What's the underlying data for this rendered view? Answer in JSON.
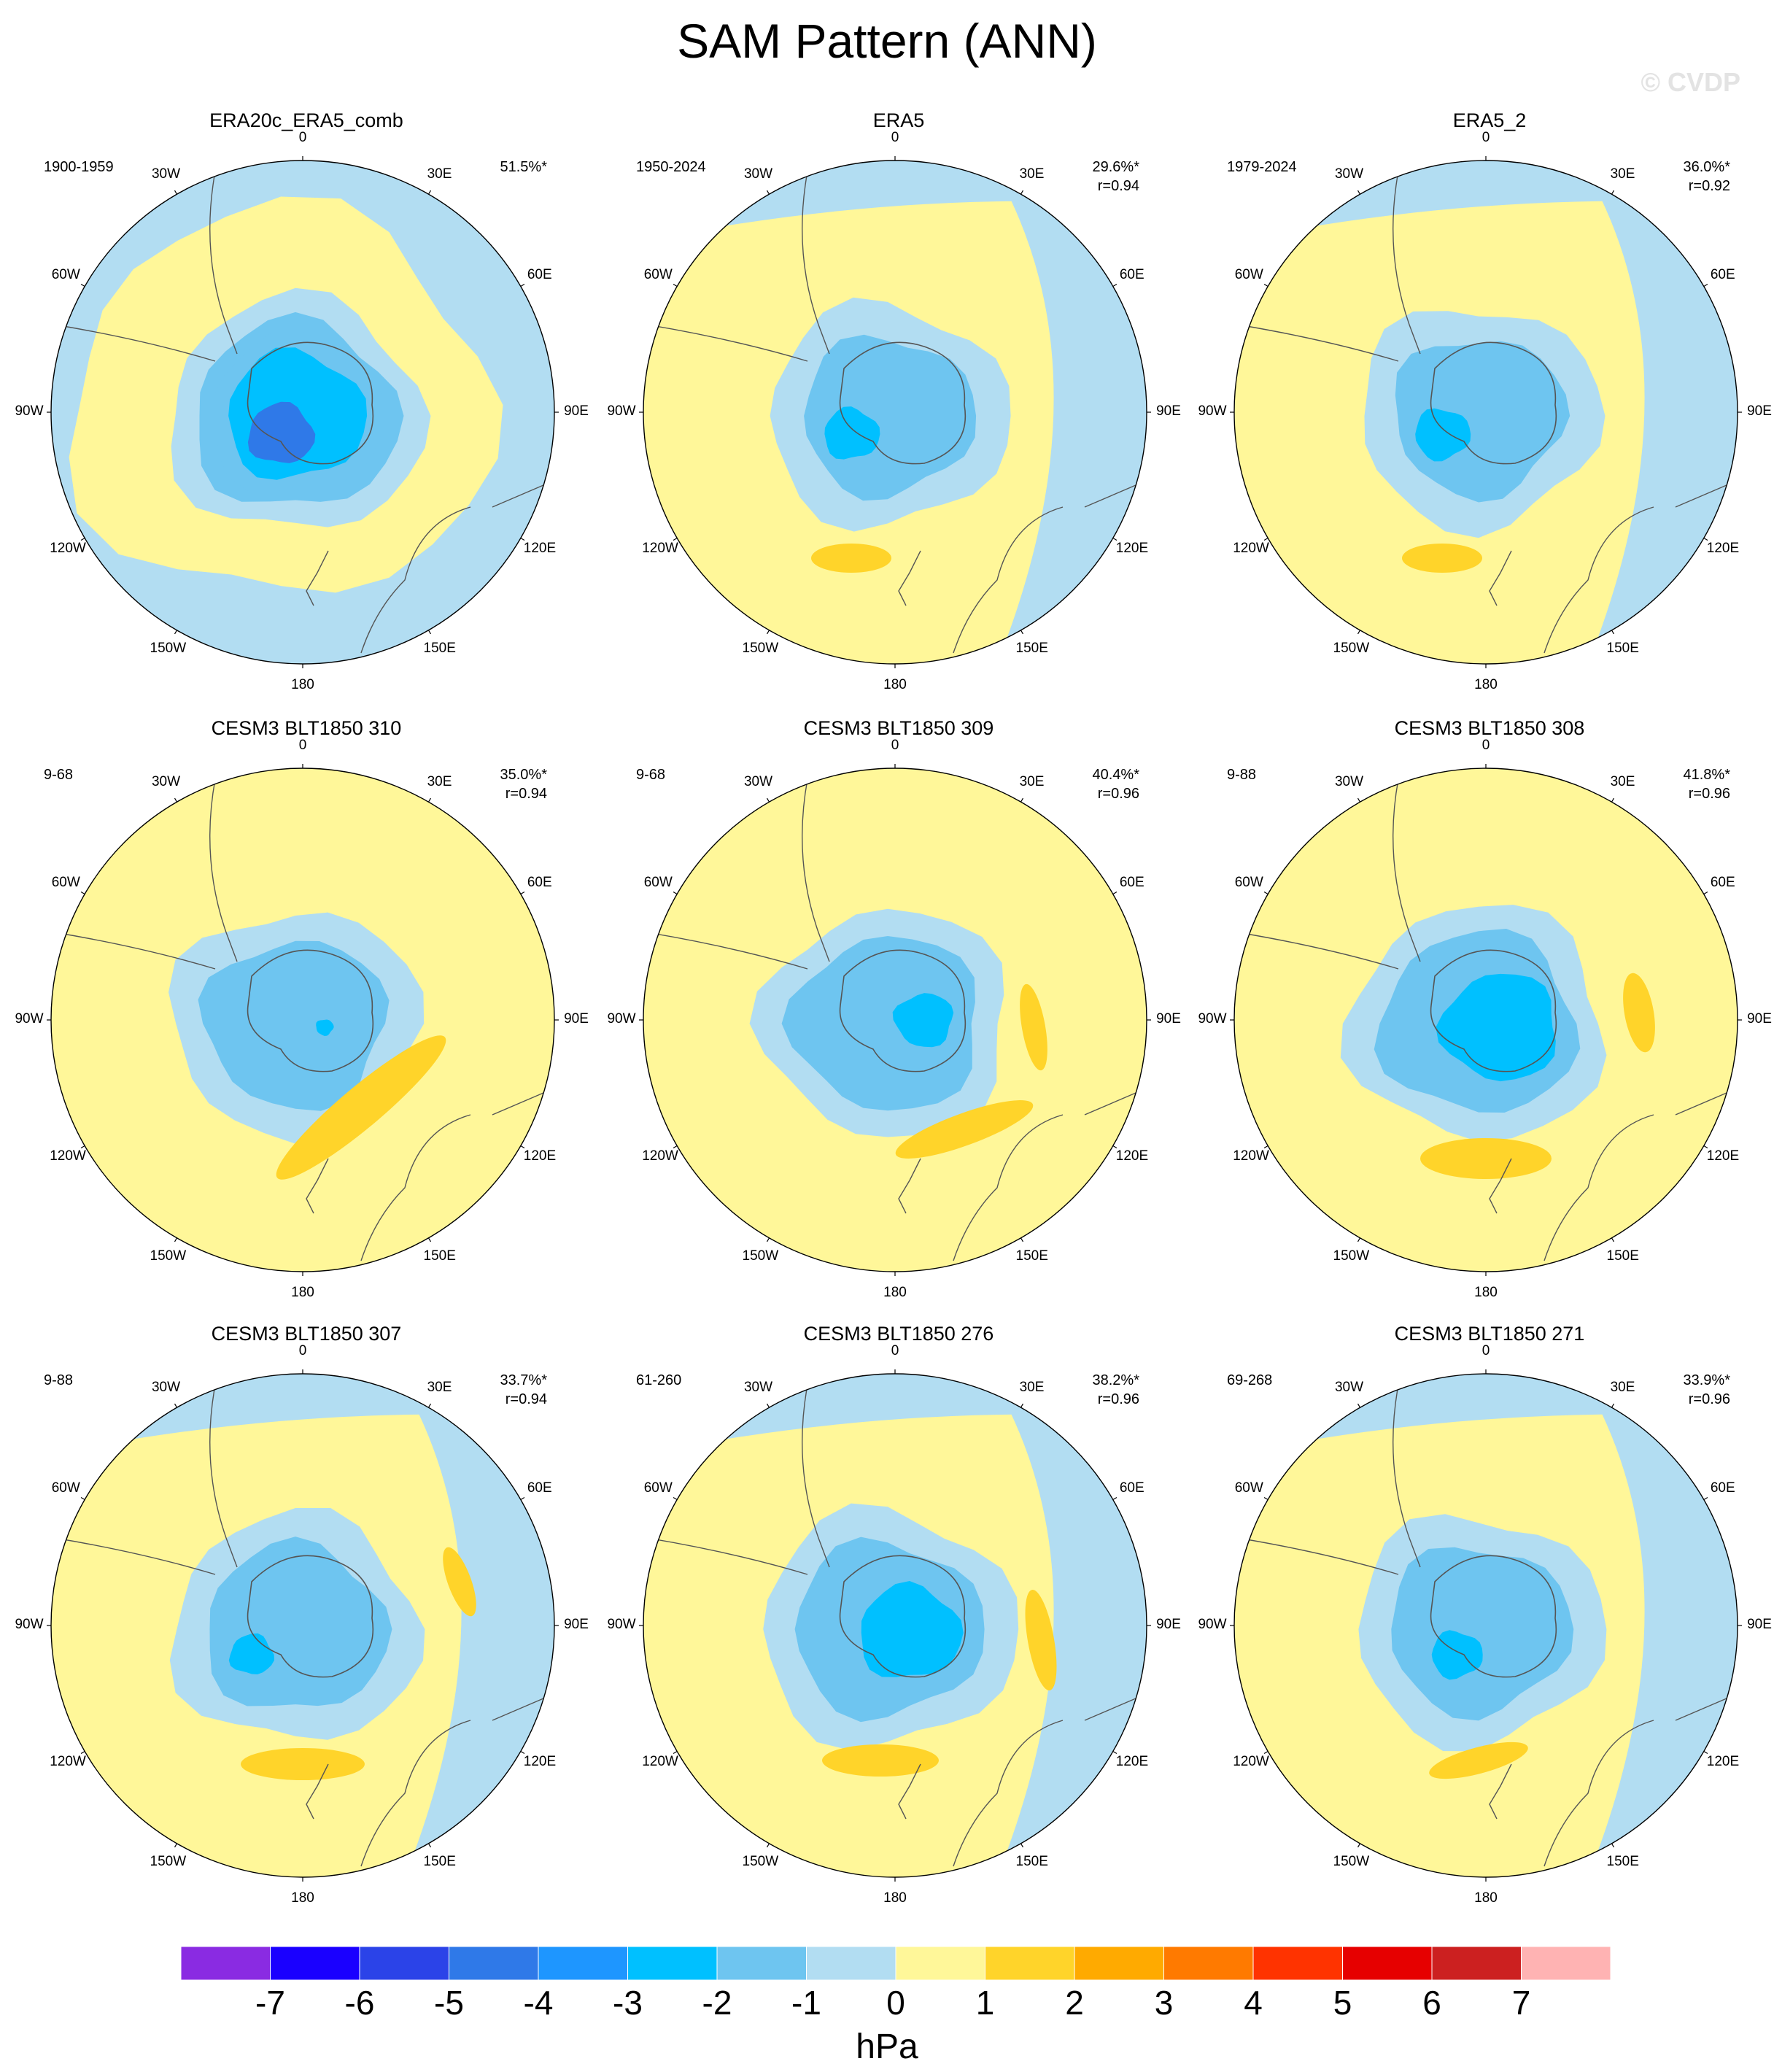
{
  "title": "SAM Pattern (ANN)",
  "watermark": "© CVDP",
  "lon_labels": [
    "0",
    "30E",
    "60E",
    "90E",
    "120E",
    "150E",
    "180",
    "150W",
    "120W",
    "90W",
    "60W",
    "30W"
  ],
  "panels": [
    {
      "title": "ERA20c_ERA5_comb",
      "period": "1900-1959",
      "pct": "51.5%*",
      "corr": "",
      "variant": "era20c"
    },
    {
      "title": "ERA5",
      "period": "1950-2024",
      "pct": "29.6%*",
      "corr": "r=0.94",
      "variant": "era5"
    },
    {
      "title": "ERA5_2",
      "period": "1979-2024",
      "pct": "36.0%*",
      "corr": "r=0.92",
      "variant": "era5"
    },
    {
      "title": "CESM3 BLT1850 310",
      "period": "9-68",
      "pct": "35.0%*",
      "corr": "r=0.94",
      "variant": "c310"
    },
    {
      "title": "CESM3 BLT1850 309",
      "period": "9-68",
      "pct": "40.4%*",
      "corr": "r=0.96",
      "variant": "c309"
    },
    {
      "title": "CESM3 BLT1850 308",
      "period": "9-88",
      "pct": "41.8%*",
      "corr": "r=0.96",
      "variant": "c308"
    },
    {
      "title": "CESM3 BLT1850 307",
      "period": "9-88",
      "pct": "33.7%*",
      "corr": "r=0.94",
      "variant": "c307"
    },
    {
      "title": "CESM3 BLT1850 276",
      "period": "61-260",
      "pct": "38.2%*",
      "corr": "r=0.96",
      "variant": "c276"
    },
    {
      "title": "CESM3 BLT1850 271",
      "period": "69-268",
      "pct": "33.9%*",
      "corr": "r=0.96",
      "variant": "c271"
    }
  ],
  "colorbar": {
    "units": "hPa",
    "labels": [
      "-7",
      "-6",
      "-5",
      "-4",
      "-3",
      "-2",
      "-1",
      "0",
      "1",
      "2",
      "3",
      "4",
      "5",
      "6",
      "7"
    ],
    "colors": [
      "#8a2be2",
      "#1a00ff",
      "#2b43e8",
      "#2f79e8",
      "#1e96ff",
      "#00c0ff",
      "#6ec5f0",
      "#b2ddf2",
      "#fff799",
      "#ffd42a",
      "#ffaa00",
      "#ff7a00",
      "#ff3300",
      "#e60000",
      "#cc2020",
      "#ffb3b3"
    ]
  }
}
